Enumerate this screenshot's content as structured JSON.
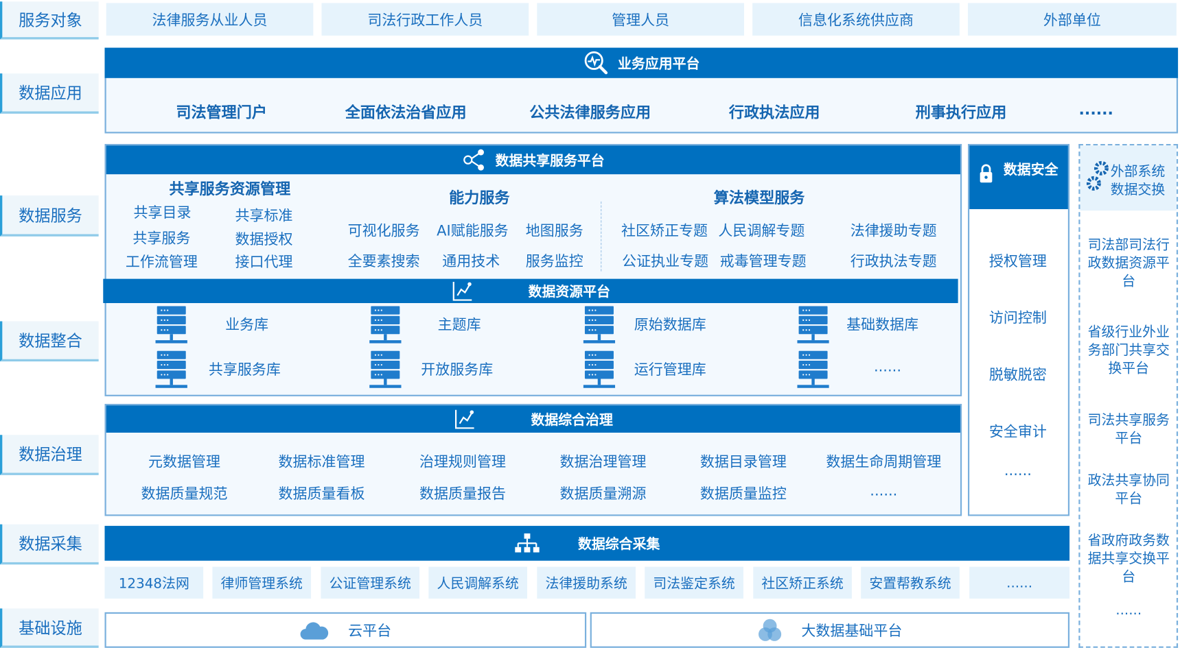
{
  "layers": [
    "服务对象",
    "数据应用",
    "数据服务",
    "数据整合",
    "数据治理",
    "数据采集",
    "基础设施"
  ],
  "service_targets": [
    "法律服务从业人员",
    "司法行政工作人员",
    "管理人员",
    "信息化系统供应商",
    "外部单位"
  ],
  "app_platform": {
    "title": "业务应用平台",
    "items": [
      "司法管理门户",
      "全面依法治省应用",
      "公共法律服务应用",
      "行政执法应用",
      "刑事执行应用",
      "......"
    ]
  },
  "share_platform": {
    "title": "数据共享服务平台",
    "resource_mgmt": {
      "title": "共享服务资源管理",
      "items": [
        "共享目录",
        "共享标准",
        "共享服务",
        "数据授权",
        "工作流管理",
        "接口代理"
      ]
    },
    "capability": {
      "title": "能力服务",
      "items": [
        "可视化服务",
        "AI赋能服务",
        "地图服务",
        "全要素搜索",
        "通用技术",
        "服务监控"
      ]
    },
    "algorithm": {
      "title": "算法模型服务",
      "items": [
        "社区矫正专题",
        "人民调解专题",
        "法律援助专题",
        "公证执业专题",
        "戒毒管理专题",
        "行政执法专题"
      ]
    }
  },
  "resource_platform": {
    "title": "数据资源平台",
    "dbs": [
      "业务库",
      "主题库",
      "原始数据库",
      "基础数据库",
      "共享服务库",
      "开放服务库",
      "运行管理库",
      "......"
    ]
  },
  "security": {
    "title": "数据安全",
    "items": [
      "授权管理",
      "访问控制",
      "脱敏脱密",
      "安全审计",
      "......"
    ]
  },
  "external": {
    "title_line1": "外部系统",
    "title_line2": "数据交换",
    "items": [
      "司法部司法行政数据资源平台",
      "省级行业外业务部门共享交换平台",
      "司法共享服务平台",
      "政法共享协同平台",
      "省政府政务数据共享交换平台",
      "......"
    ]
  },
  "governance": {
    "title": "数据综合治理",
    "items": [
      "元数据管理",
      "数据标准管理",
      "治理规则管理",
      "数据治理管理",
      "数据目录管理",
      "数据生命周期管理",
      "数据质量规范",
      "数据质量看板",
      "数据质量报告",
      "数据质量溯源",
      "数据质量监控",
      "......"
    ]
  },
  "collection": {
    "title": "数据综合采集",
    "items": [
      "12348法网",
      "律师管理系统",
      "公证管理系统",
      "人民调解系统",
      "法律援助系统",
      "司法鉴定系统",
      "社区矫正系统",
      "安置帮教系统",
      "......"
    ]
  },
  "infra": {
    "cloud": "云平台",
    "bigdata": "大数据基础平台"
  },
  "colors": {
    "primary": "#0070c0",
    "panel_bg": "#f3f9fe",
    "light_box": "#e6f3fc",
    "text": "#1a6fbf"
  }
}
